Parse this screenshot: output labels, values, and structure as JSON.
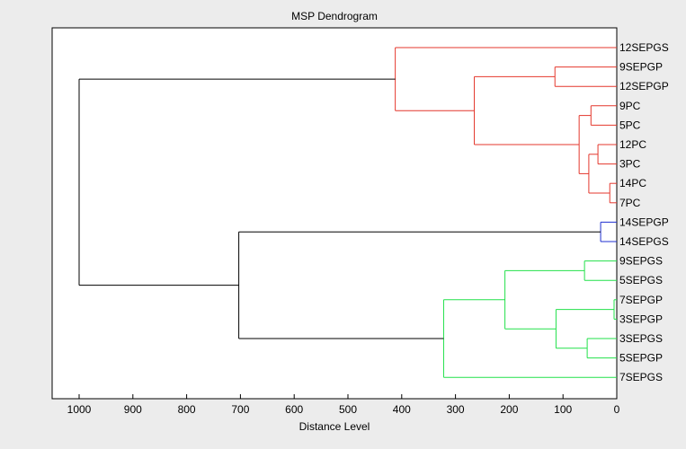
{
  "chart_data": {
    "type": "dendrogram",
    "title": "MSP Dendrogram",
    "xlabel": "Distance Level",
    "xlim": [
      0,
      1050
    ],
    "x_reversed": true,
    "xticks": [
      1000,
      900,
      800,
      700,
      600,
      500,
      400,
      300,
      200,
      100,
      0
    ],
    "grid": false,
    "leaves": [
      {
        "label": "12SEPGS",
        "color": "#e4372c"
      },
      {
        "label": "9SEPGP",
        "color": "#e4372c"
      },
      {
        "label": "12SEPGP",
        "color": "#e4372c"
      },
      {
        "label": "9PC",
        "color": "#e4372c"
      },
      {
        "label": "5PC",
        "color": "#e4372c"
      },
      {
        "label": "12PC",
        "color": "#e4372c"
      },
      {
        "label": "3PC",
        "color": "#e4372c"
      },
      {
        "label": "14PC",
        "color": "#e4372c"
      },
      {
        "label": "7PC",
        "color": "#e4372c"
      },
      {
        "label": "14SEPGP",
        "color": "#1f2fd0"
      },
      {
        "label": "14SEPGS",
        "color": "#1f2fd0"
      },
      {
        "label": "9SEPGS",
        "color": "#22e14a"
      },
      {
        "label": "5SEPGS",
        "color": "#22e14a"
      },
      {
        "label": "7SEPGP",
        "color": "#22e14a"
      },
      {
        "label": "3SEPGP",
        "color": "#22e14a"
      },
      {
        "label": "3SEPGS",
        "color": "#22e14a"
      },
      {
        "label": "5SEPGP",
        "color": "#22e14a"
      },
      {
        "label": "7SEPGS",
        "color": "#22e14a"
      }
    ],
    "merges": [
      {
        "a": "L13",
        "b": "L14",
        "height": 5,
        "color": "#22e14a"
      },
      {
        "a": "L7",
        "b": "L8",
        "height": 13,
        "color": "#e4372c"
      },
      {
        "a": "L9",
        "b": "L10",
        "height": 30,
        "color": "#1f2fd0"
      },
      {
        "a": "L5",
        "b": "L6",
        "height": 35,
        "color": "#e4372c"
      },
      {
        "a": "L3",
        "b": "L4",
        "height": 48,
        "color": "#e4372c"
      },
      {
        "a": "M1",
        "b": "M3",
        "height": 52,
        "color": "#e4372c"
      },
      {
        "a": "L15",
        "b": "L16",
        "height": 55,
        "color": "#22e14a"
      },
      {
        "a": "L11",
        "b": "L12",
        "height": 60,
        "color": "#22e14a"
      },
      {
        "a": "M4",
        "b": "M5",
        "height": 70,
        "color": "#e4372c"
      },
      {
        "a": "L1",
        "b": "L2",
        "height": 115,
        "color": "#e4372c"
      },
      {
        "a": "M6",
        "b": "M0",
        "height": 113,
        "color": "#22e14a"
      },
      {
        "a": "M7",
        "b": "M10",
        "height": 208,
        "color": "#22e14a"
      },
      {
        "a": "M8",
        "b": "M9",
        "height": 265,
        "color": "#e4372c"
      },
      {
        "a": "L0",
        "b": "M12",
        "height": 412,
        "color": "#e4372c"
      },
      {
        "a": "L17",
        "b": "M11",
        "height": 322,
        "color": "#22e14a"
      },
      {
        "a": "M2",
        "b": "M14",
        "height": 703,
        "color": "#000000"
      },
      {
        "a": "M13",
        "b": "M15",
        "height": 1000,
        "color": "#000000"
      }
    ]
  }
}
